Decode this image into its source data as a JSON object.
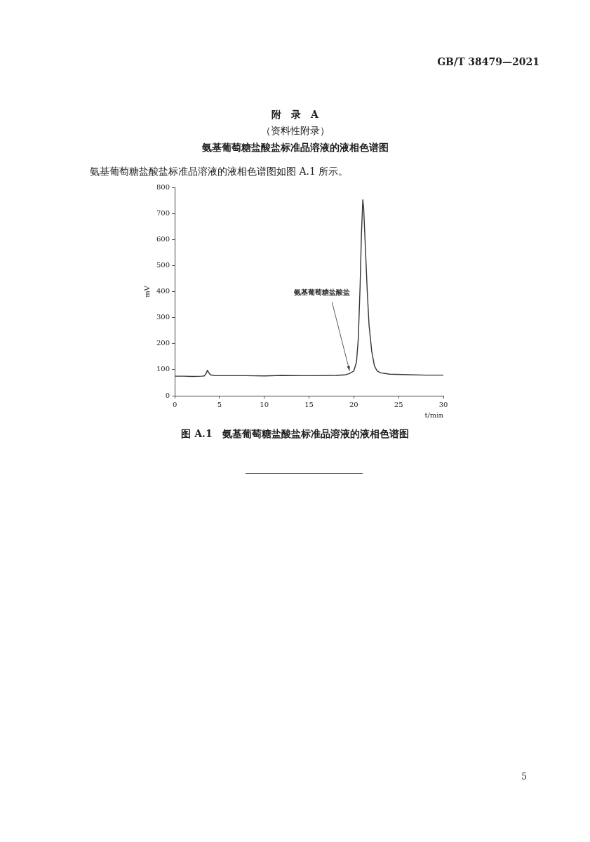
{
  "chart_data": {
    "type": "line",
    "title": "氨基葡萄糖盐酸盐标准品溶液的液相色谱图",
    "xlabel": "t/min",
    "ylabel": "mV",
    "xlim": [
      0,
      30
    ],
    "xticks": [
      0,
      5,
      10,
      15,
      20,
      25,
      30
    ],
    "ylim": [
      0,
      800
    ],
    "yticks": [
      0,
      100,
      200,
      300,
      400,
      500,
      600,
      700,
      800
    ],
    "x": [
      0,
      1,
      2,
      3,
      3.3,
      3.5,
      3.65,
      3.8,
      4,
      4.5,
      6,
      8,
      10,
      12,
      14,
      16,
      18,
      19,
      19.5,
      20,
      20.3,
      20.5,
      20.7,
      20.85,
      21,
      21.1,
      21.25,
      21.5,
      21.7,
      22,
      22.3,
      22.6,
      23,
      24,
      26,
      28,
      30
    ],
    "series": [
      {
        "color": "#333333",
        "values": [
          75,
          75,
          74,
          75,
          76,
          85,
          98,
          88,
          80,
          77,
          77,
          77,
          76,
          78,
          77,
          77,
          78,
          80,
          85,
          95,
          130,
          220,
          420,
          620,
          752,
          720,
          600,
          400,
          270,
          170,
          115,
          95,
          88,
          83,
          81,
          79,
          79
        ]
      }
    ],
    "marker": "none",
    "line_style": "solid",
    "grid": false,
    "legend": false,
    "annotations": [
      "GB/T 38479—2021",
      "附　录　A",
      "（资料性附录）",
      "氨基葡萄糖盐酸盐标准品溶液的液相色谱图如图 A.1 所示。",
      {
        "text": "氨基葡萄糖盐酸盐",
        "x": 19.6,
        "y": 90
      },
      "图 A.1　氨基葡萄糖盐酸盐标准品溶液的液相色谱图",
      "5"
    ]
  }
}
